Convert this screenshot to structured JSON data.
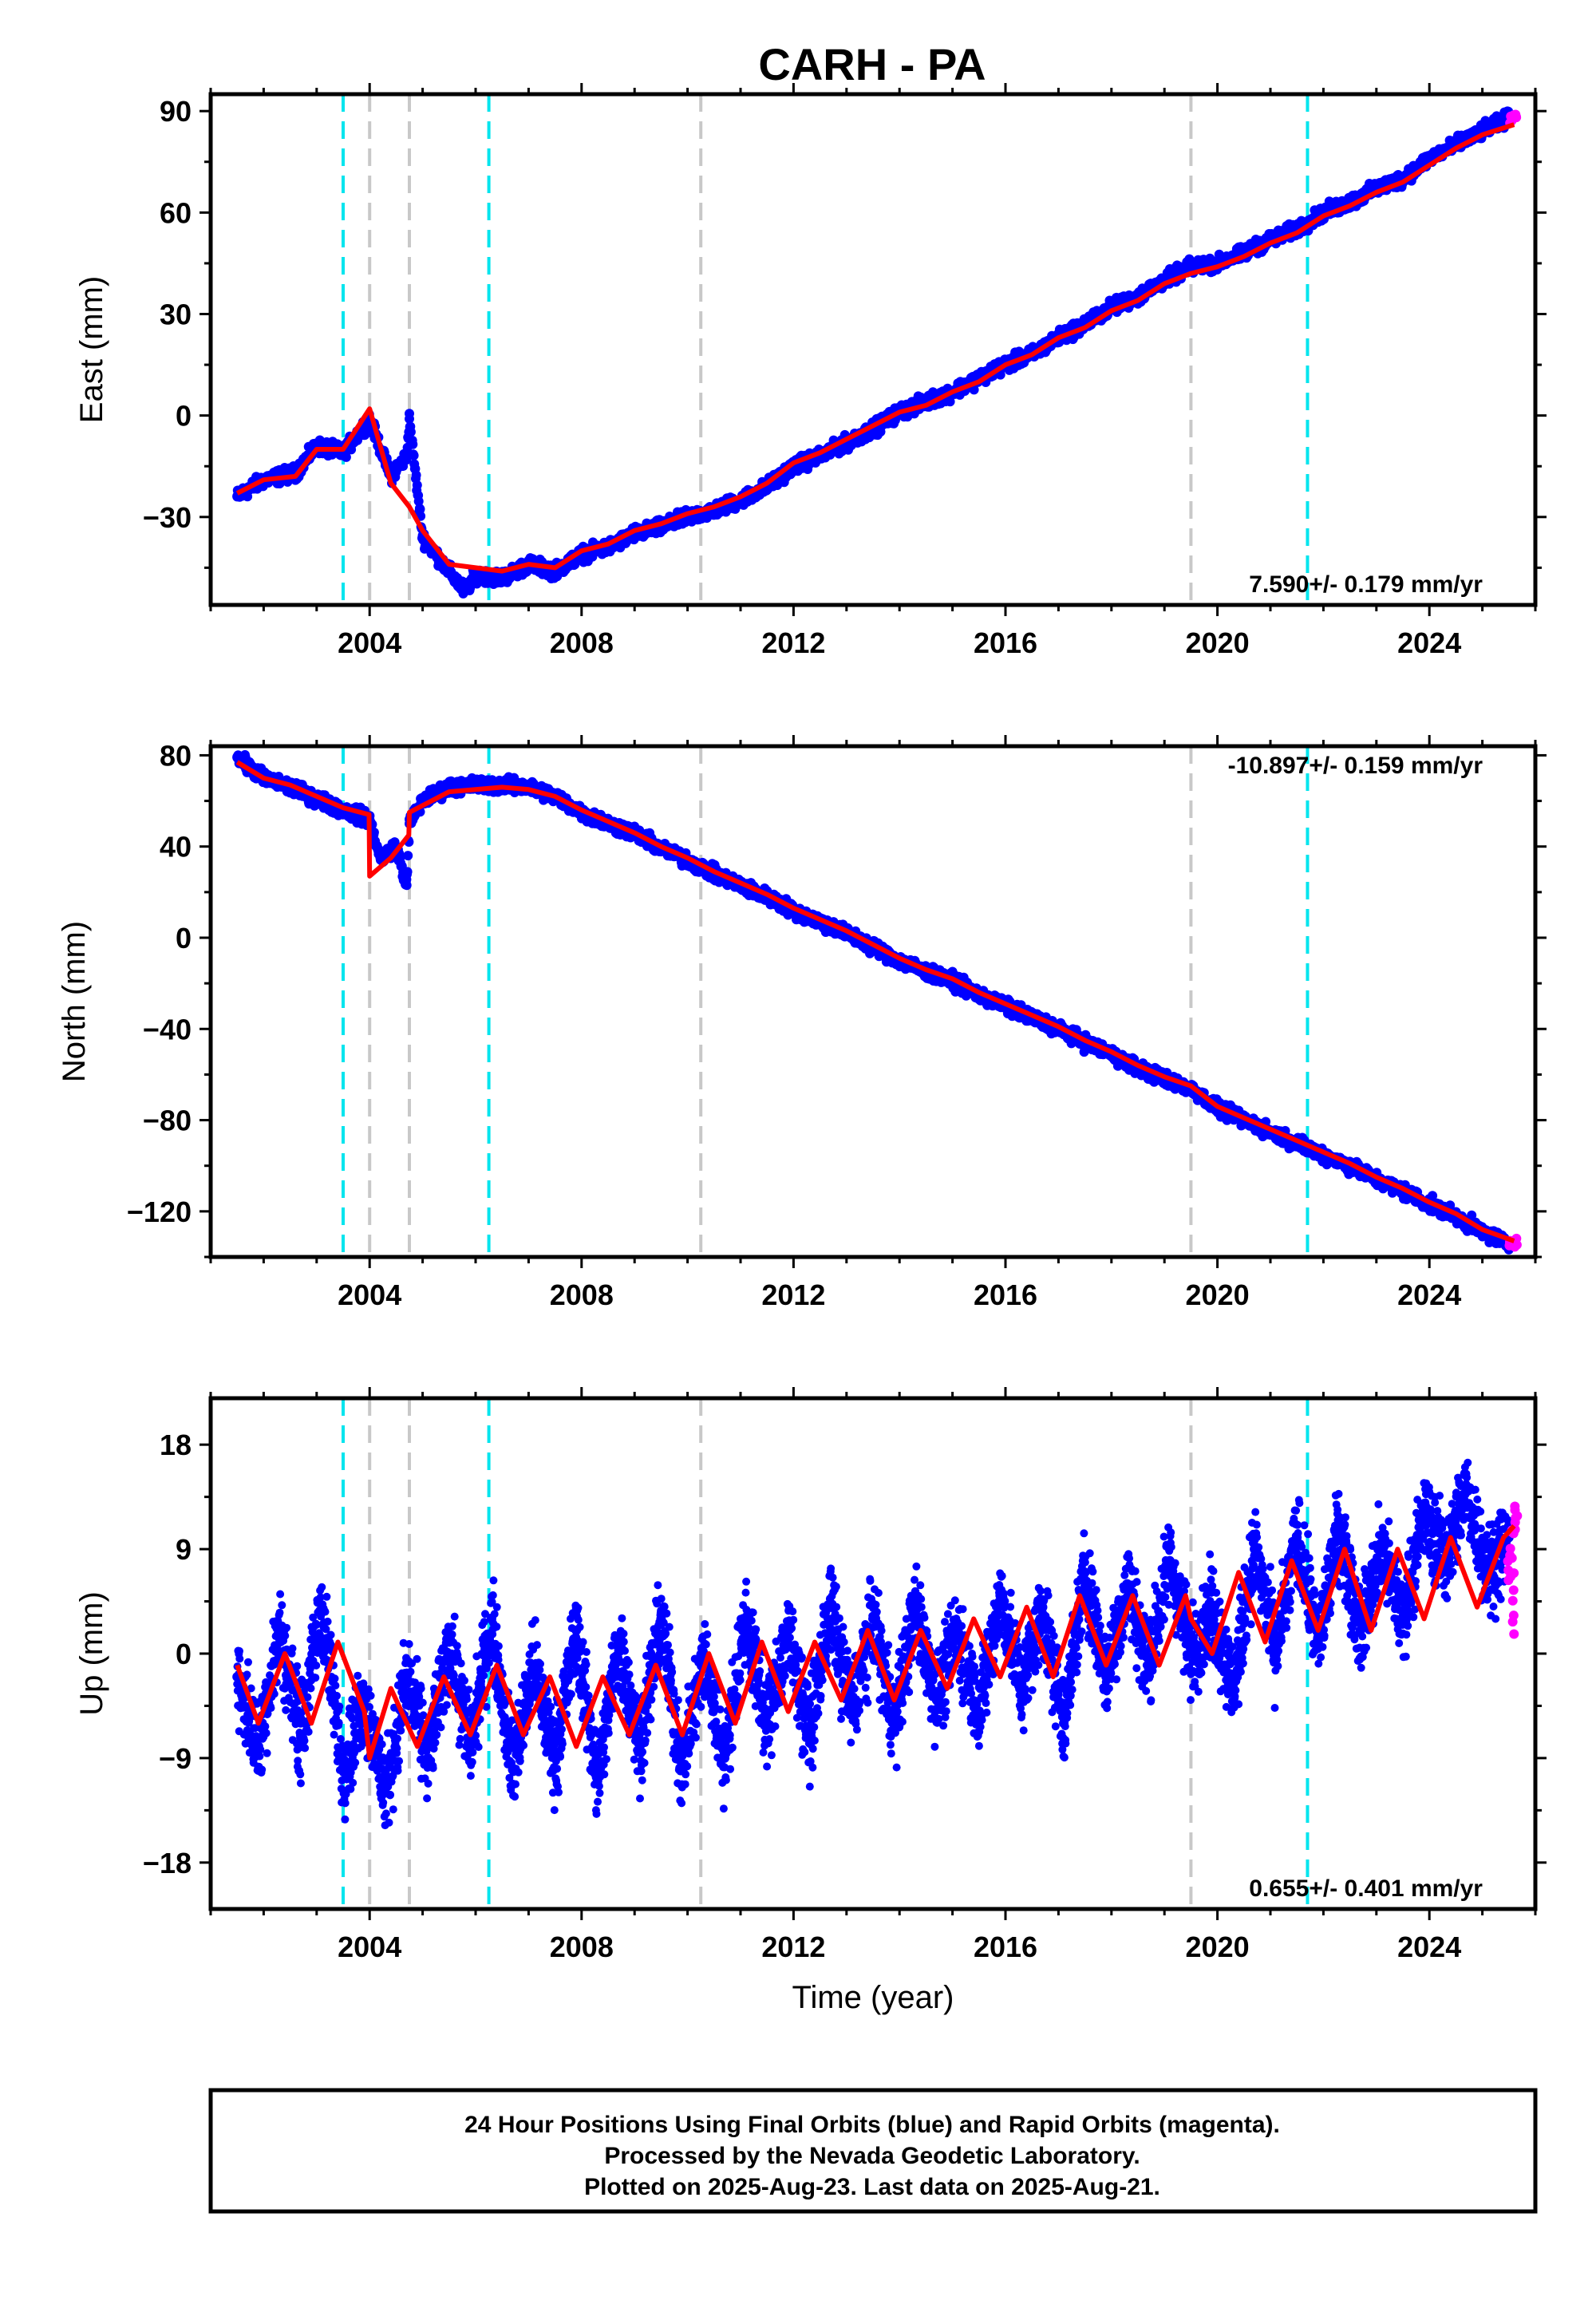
{
  "title": "CARH - PA",
  "footer": [
    "24 Hour Positions Using Final Orbits (blue) and Rapid Orbits (magenta).",
    "Processed by the Nevada Geodetic Laboratory.",
    "Plotted on 2025-Aug-23. Last data on 2025-Aug-21."
  ],
  "colors": {
    "final_orbits": "#0000ff",
    "rapid_orbits": "#ff00ff",
    "model": "#ff0000",
    "equipment_change": "#00e5ee",
    "earthquake": "#c8c8c8"
  },
  "chart_data": [
    {
      "type": "scatter",
      "ylabel": "East (mm)",
      "xlabel": "",
      "xlim": [
        2001.0,
        2026.0
      ],
      "ylim": [
        -56,
        95
      ],
      "x_ticks": [
        2004,
        2008,
        2012,
        2016,
        2020,
        2024
      ],
      "y_ticks": [
        90,
        60,
        30,
        0,
        -30
      ],
      "rate": "7.590+/- 0.179 mm/yr",
      "rate_position": "bottom-right",
      "vlines_cyan": [
        2003.5,
        2006.25,
        2021.7
      ],
      "vlines_gray": [
        2004.0,
        2004.75,
        2010.25,
        2019.5
      ],
      "series": [
        {
          "role": "model",
          "x": [
            2001.5,
            2002.0,
            2002.6,
            2003.0,
            2003.5,
            2004.0,
            2004.4,
            2004.75,
            2005.0,
            2005.5,
            2006.0,
            2006.5,
            2007.0,
            2007.5,
            2008.0,
            2008.5,
            2009.0,
            2009.5,
            2010.0,
            2010.5,
            2011.0,
            2011.5,
            2012.0,
            2012.5,
            2013.0,
            2013.5,
            2014.0,
            2014.5,
            2015.0,
            2015.5,
            2016.0,
            2016.5,
            2017.0,
            2017.5,
            2018.0,
            2018.5,
            2019.0,
            2019.5,
            2020.0,
            2020.5,
            2021.0,
            2021.5,
            2022.0,
            2022.5,
            2023.0,
            2023.5,
            2024.0,
            2024.5,
            2025.0,
            2025.6
          ],
          "y": [
            -23,
            -19,
            -18,
            -10,
            -10,
            2,
            -20,
            -27,
            -34,
            -44,
            -45,
            -46,
            -44,
            -45,
            -40,
            -38,
            -34,
            -32,
            -29,
            -27,
            -24,
            -20,
            -14,
            -11,
            -7,
            -3,
            1,
            3,
            7,
            10,
            15,
            18,
            23,
            26,
            31,
            34,
            39,
            42,
            44,
            47,
            51,
            54,
            59,
            62,
            66,
            69,
            74,
            79,
            83,
            86
          ]
        },
        {
          "role": "final",
          "x": [
            2001.5,
            2002.0,
            2002.6,
            2003.0,
            2003.5,
            2004.0,
            2004.4,
            2004.7,
            2004.75,
            2005.0,
            2005.5,
            2005.8,
            2006.0,
            2006.5,
            2007.0,
            2007.5,
            2008.0,
            2008.5,
            2009.0,
            2009.5,
            2010.0,
            2010.5,
            2011.0,
            2011.5,
            2012.0,
            2012.5,
            2013.0,
            2013.5,
            2014.0,
            2014.5,
            2015.0,
            2015.5,
            2016.0,
            2016.5,
            2017.0,
            2017.5,
            2018.0,
            2018.5,
            2019.0,
            2019.5,
            2020.0,
            2020.5,
            2021.0,
            2021.5,
            2022.0,
            2022.5,
            2023.0,
            2023.5,
            2024.0,
            2024.5,
            2025.0,
            2025.5
          ],
          "y": [
            -24,
            -19,
            -17,
            -9,
            -11,
            -1,
            -18,
            -12,
            -1,
            -36,
            -46,
            -52,
            -47,
            -48,
            -44,
            -46,
            -41,
            -39,
            -35,
            -33,
            -30,
            -28,
            -25,
            -21,
            -15,
            -12,
            -8,
            -4,
            1,
            4,
            7,
            11,
            15,
            18,
            23,
            27,
            32,
            35,
            40,
            44,
            45,
            48,
            52,
            55,
            60,
            63,
            67,
            70,
            76,
            80,
            84,
            88
          ]
        },
        {
          "role": "rapid",
          "x": [
            2025.55,
            2025.62
          ],
          "y": [
            88,
            89
          ]
        }
      ]
    },
    {
      "type": "scatter",
      "ylabel": "North (mm)",
      "xlabel": "",
      "xlim": [
        2001.0,
        2026.0
      ],
      "ylim": [
        -140,
        84
      ],
      "x_ticks": [
        2004,
        2008,
        2012,
        2016,
        2020,
        2024
      ],
      "y_ticks": [
        80,
        40,
        0,
        -40,
        -80,
        -120
      ],
      "rate": "-10.897+/- 0.159 mm/yr",
      "rate_position": "top-right",
      "vlines_cyan": [
        2003.5,
        2006.25,
        2021.7
      ],
      "vlines_gray": [
        2004.0,
        2004.75,
        2010.25,
        2019.5
      ],
      "series": [
        {
          "role": "model",
          "x": [
            2001.5,
            2002.0,
            2002.5,
            2003.0,
            2003.5,
            2003.99,
            2004.0,
            2004.4,
            2004.74,
            2004.75,
            2005.0,
            2005.5,
            2006.0,
            2006.5,
            2007.0,
            2007.5,
            2008.0,
            2008.5,
            2009.0,
            2009.5,
            2010.0,
            2010.5,
            2011.0,
            2011.5,
            2012.0,
            2012.5,
            2013.0,
            2013.5,
            2014.0,
            2014.5,
            2015.0,
            2015.5,
            2016.0,
            2016.5,
            2017.0,
            2017.5,
            2018.0,
            2018.5,
            2019.0,
            2019.5,
            2020.0,
            2020.5,
            2021.0,
            2021.5,
            2022.0,
            2022.5,
            2023.0,
            2023.5,
            2024.0,
            2024.5,
            2025.0,
            2025.6
          ],
          "y": [
            77,
            70,
            67,
            62,
            57,
            54,
            27,
            35,
            45,
            55,
            58,
            64,
            65,
            66,
            65,
            62,
            56,
            51,
            46,
            40,
            35,
            29,
            24,
            19,
            13,
            8,
            3,
            -3,
            -9,
            -14,
            -18,
            -24,
            -29,
            -34,
            -39,
            -45,
            -50,
            -56,
            -61,
            -65,
            -74,
            -79,
            -84,
            -89,
            -94,
            -99,
            -105,
            -110,
            -116,
            -121,
            -128,
            -133
          ]
        },
        {
          "role": "final",
          "x": [
            2001.5,
            2002.0,
            2002.5,
            2003.0,
            2003.5,
            2004.0,
            2004.2,
            2004.5,
            2004.7,
            2004.75,
            2005.0,
            2005.5,
            2006.0,
            2006.5,
            2007.0,
            2007.5,
            2008.0,
            2008.5,
            2009.0,
            2009.5,
            2010.0,
            2010.5,
            2011.0,
            2011.5,
            2012.0,
            2012.5,
            2013.0,
            2013.5,
            2014.0,
            2014.5,
            2015.0,
            2015.5,
            2016.0,
            2016.5,
            2017.0,
            2017.5,
            2018.0,
            2018.5,
            2019.0,
            2019.5,
            2020.0,
            2020.5,
            2021.0,
            2021.5,
            2022.0,
            2022.5,
            2023.0,
            2023.5,
            2024.0,
            2024.5,
            2025.0,
            2025.5
          ],
          "y": [
            79,
            70,
            66,
            61,
            56,
            52,
            35,
            40,
            23,
            50,
            60,
            66,
            67,
            67,
            66,
            62,
            55,
            50,
            46,
            39,
            34,
            28,
            23,
            18,
            12,
            7,
            2,
            -4,
            -10,
            -15,
            -19,
            -25,
            -30,
            -35,
            -40,
            -46,
            -51,
            -57,
            -62,
            -66,
            -75,
            -80,
            -85,
            -90,
            -95,
            -100,
            -106,
            -111,
            -117,
            -122,
            -129,
            -134
          ]
        },
        {
          "role": "rapid",
          "x": [
            2025.55,
            2025.62
          ],
          "y": [
            -133,
            -134
          ]
        }
      ]
    },
    {
      "type": "scatter",
      "ylabel": "Up (mm)",
      "xlabel": "Time (year)",
      "xlim": [
        2001.0,
        2026.0
      ],
      "ylim": [
        -22,
        22
      ],
      "x_ticks": [
        2004,
        2008,
        2012,
        2016,
        2020,
        2024
      ],
      "y_ticks": [
        18,
        9,
        0,
        -9,
        -18
      ],
      "rate": "0.655+/- 0.401 mm/yr",
      "rate_position": "bottom-right",
      "vlines_cyan": [
        2003.5,
        2006.25,
        2021.7
      ],
      "vlines_gray": [
        2004.0,
        2004.75,
        2010.25,
        2019.5
      ],
      "series": [
        {
          "role": "model",
          "x": [
            2001.5,
            2001.9,
            2002.4,
            2002.9,
            2003.4,
            2003.9,
            2004.0,
            2004.4,
            2004.9,
            2005.4,
            2005.9,
            2006.4,
            2006.9,
            2007.4,
            2007.9,
            2008.4,
            2008.9,
            2009.4,
            2009.9,
            2010.4,
            2010.9,
            2011.4,
            2011.9,
            2012.4,
            2012.9,
            2013.4,
            2013.9,
            2014.4,
            2014.9,
            2015.4,
            2015.9,
            2016.4,
            2016.9,
            2017.4,
            2017.9,
            2018.4,
            2018.9,
            2019.4,
            2019.5,
            2019.9,
            2020.4,
            2020.9,
            2021.4,
            2021.9,
            2022.4,
            2022.9,
            2023.4,
            2023.9,
            2024.4,
            2024.9,
            2025.4,
            2025.6
          ],
          "y": [
            -1,
            -6,
            0,
            -6,
            1,
            -5,
            -9,
            -3,
            -8,
            -2,
            -7,
            -1,
            -7,
            -2,
            -8,
            -2,
            -7,
            -1,
            -7,
            0,
            -6,
            1,
            -5,
            1,
            -4,
            2,
            -4,
            2,
            -3,
            3,
            -2,
            4,
            -2,
            5,
            -1,
            5,
            -1,
            5,
            3,
            0,
            7,
            1,
            8,
            2,
            9,
            2,
            9,
            3,
            10,
            4,
            10,
            11
          ]
        },
        {
          "role": "final",
          "x": [
            2001.5,
            2001.9,
            2002.3,
            2002.7,
            2003.1,
            2003.5,
            2003.9,
            2004.3,
            2004.7,
            2005.1,
            2005.5,
            2005.9,
            2006.3,
            2006.7,
            2007.1,
            2007.5,
            2007.9,
            2008.3,
            2008.7,
            2009.1,
            2009.5,
            2009.9,
            2010.3,
            2010.7,
            2011.1,
            2011.5,
            2011.9,
            2012.3,
            2012.7,
            2013.1,
            2013.5,
            2013.9,
            2014.3,
            2014.7,
            2015.1,
            2015.5,
            2015.9,
            2016.3,
            2016.7,
            2017.1,
            2017.5,
            2017.9,
            2018.3,
            2018.7,
            2019.1,
            2019.5,
            2019.9,
            2020.3,
            2020.7,
            2021.1,
            2021.5,
            2021.9,
            2022.3,
            2022.7,
            2023.1,
            2023.5,
            2023.9,
            2024.3,
            2024.7,
            2025.1,
            2025.5
          ],
          "y": [
            -2,
            -8,
            2,
            -7,
            4,
            -10,
            -4,
            -12,
            -2,
            -9,
            1,
            -8,
            3,
            -10,
            -1,
            -9,
            2,
            -11,
            1,
            -8,
            3,
            -10,
            0,
            -9,
            3,
            -6,
            2,
            -7,
            4,
            -5,
            3,
            -6,
            4,
            -4,
            2,
            -5,
            5,
            -3,
            4,
            -6,
            7,
            -2,
            6,
            -1,
            8,
            0,
            4,
            -3,
            9,
            0,
            10,
            1,
            11,
            2,
            9,
            3,
            12,
            8,
            14,
            7,
            10
          ]
        },
        {
          "role": "rapid",
          "x": [
            2025.52,
            2025.56,
            2025.6,
            2025.64
          ],
          "y": [
            6,
            10,
            4,
            12
          ]
        }
      ]
    }
  ]
}
